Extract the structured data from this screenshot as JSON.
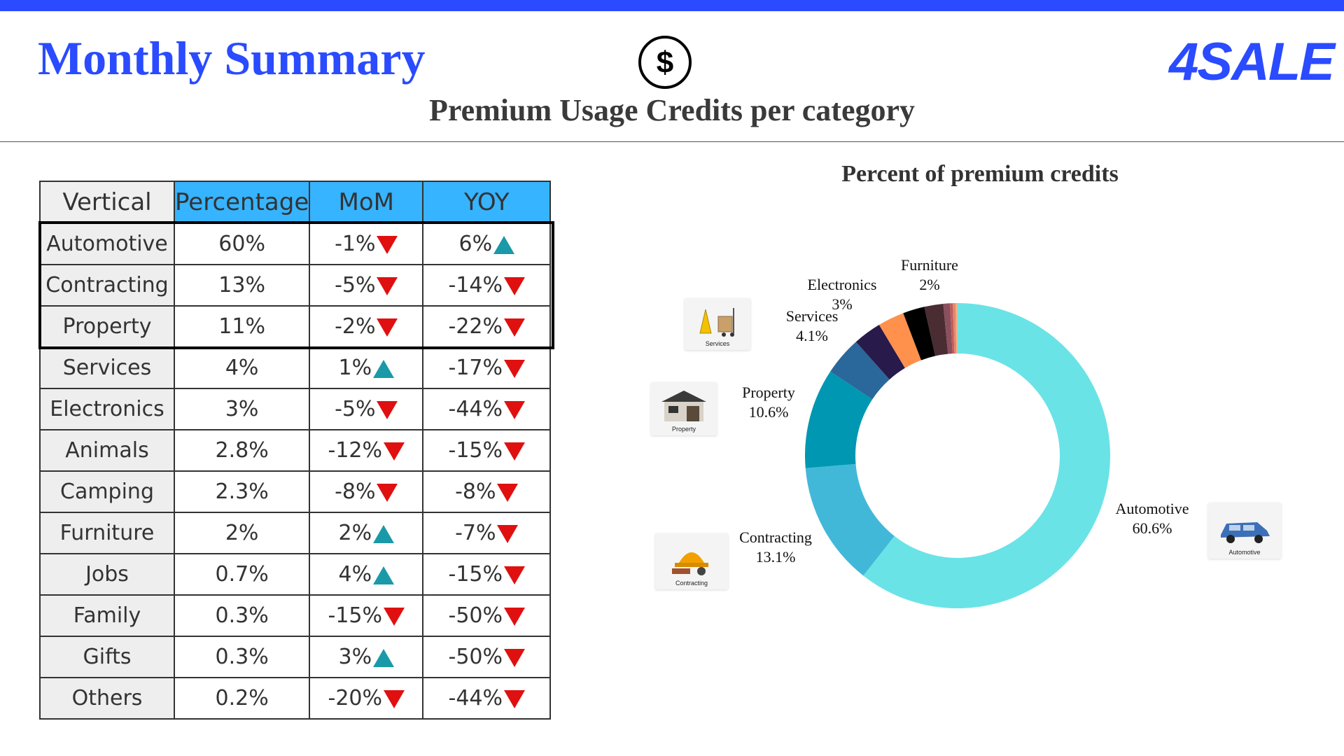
{
  "header": {
    "title": "Monthly Summary",
    "subtitle": "Premium Usage Credits per category",
    "logo": "4SALE",
    "colors": {
      "brand": "#2a4bff",
      "header_cell": "#36b4ff",
      "down": "#e01010",
      "up": "#1a9aa8"
    }
  },
  "table": {
    "headers": [
      "Vertical",
      "Percentage",
      "MoM",
      "YOY"
    ],
    "rows": [
      {
        "vertical": "Automotive",
        "percentage": "60%",
        "mom": "-1%",
        "mom_dir": "down",
        "yoy": "6%",
        "yoy_dir": "up"
      },
      {
        "vertical": "Contracting",
        "percentage": "13%",
        "mom": "-5%",
        "mom_dir": "down",
        "yoy": "-14%",
        "yoy_dir": "down"
      },
      {
        "vertical": "Property",
        "percentage": "11%",
        "mom": "-2%",
        "mom_dir": "down",
        "yoy": "-22%",
        "yoy_dir": "down"
      },
      {
        "vertical": "Services",
        "percentage": "4%",
        "mom": "1%",
        "mom_dir": "up",
        "yoy": "-17%",
        "yoy_dir": "down"
      },
      {
        "vertical": "Electronics",
        "percentage": "3%",
        "mom": "-5%",
        "mom_dir": "down",
        "yoy": "-44%",
        "yoy_dir": "down"
      },
      {
        "vertical": "Animals",
        "percentage": "2.8%",
        "mom": "-12%",
        "mom_dir": "down",
        "yoy": "-15%",
        "yoy_dir": "down"
      },
      {
        "vertical": "Camping",
        "percentage": "2.3%",
        "mom": "-8%",
        "mom_dir": "down",
        "yoy": "-8%",
        "yoy_dir": "down"
      },
      {
        "vertical": "Furniture",
        "percentage": "2%",
        "mom": "2%",
        "mom_dir": "up",
        "yoy": "-7%",
        "yoy_dir": "down"
      },
      {
        "vertical": "Jobs",
        "percentage": "0.7%",
        "mom": "4%",
        "mom_dir": "up",
        "yoy": "-15%",
        "yoy_dir": "down"
      },
      {
        "vertical": "Family",
        "percentage": "0.3%",
        "mom": "-15%",
        "mom_dir": "down",
        "yoy": "-50%",
        "yoy_dir": "down"
      },
      {
        "vertical": "Gifts",
        "percentage": "0.3%",
        "mom": "3%",
        "mom_dir": "up",
        "yoy": "-50%",
        "yoy_dir": "down"
      },
      {
        "vertical": "Others",
        "percentage": "0.2%",
        "mom": "-20%",
        "mom_dir": "down",
        "yoy": "-44%",
        "yoy_dir": "down"
      }
    ]
  },
  "chart_data": {
    "type": "pie",
    "title": "Percent of premium credits",
    "donut": true,
    "slices": [
      {
        "label": "Automotive",
        "value": 60.6,
        "value_label": "60.6%",
        "color": "#6ae3e7"
      },
      {
        "label": "Contracting",
        "value": 13.1,
        "value_label": "13.1%",
        "color": "#42b8d9"
      },
      {
        "label": "Property",
        "value": 10.6,
        "value_label": "10.6%",
        "color": "#0097b2"
      },
      {
        "label": "Services",
        "value": 4.1,
        "value_label": "4.1%",
        "color": "#2a679b"
      },
      {
        "label": "Electronics",
        "value": 3,
        "value_label": "3%",
        "color": "#281a4a"
      },
      {
        "label": "",
        "value": 2.8,
        "value_label": "",
        "color": "#ff914d"
      },
      {
        "label": "",
        "value": 2.3,
        "value_label": "",
        "color": "#000000"
      },
      {
        "label": "Furniture",
        "value": 2,
        "value_label": "2%",
        "color": "#4a2c33"
      },
      {
        "label": "",
        "value": 0.7,
        "value_label": "",
        "color": "#8b4f5e"
      },
      {
        "label": "",
        "value": 0.3,
        "value_label": "",
        "color": "#c45c5c"
      },
      {
        "label": "",
        "value": 0.3,
        "value_label": "",
        "color": "#e08a6a"
      },
      {
        "label": "",
        "value": 0.2,
        "value_label": "",
        "color": "#f4b183"
      }
    ]
  },
  "thumbnails": {
    "services": "Services",
    "property": "Property",
    "contracting": "Contracting",
    "automotive": "Automotive"
  }
}
